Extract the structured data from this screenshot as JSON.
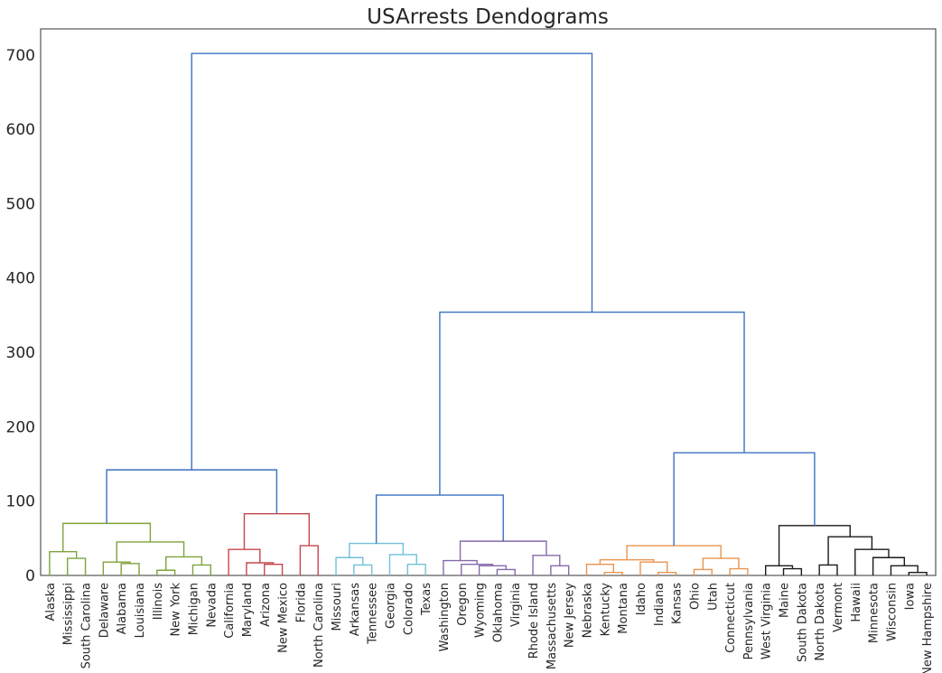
{
  "chart_data": {
    "type": "dendrogram",
    "title": "USArrests Dendograms",
    "xlabel": "",
    "ylabel": "",
    "ylim": [
      0,
      735
    ],
    "yticks": [
      0,
      100,
      200,
      300,
      400,
      500,
      600,
      700
    ],
    "grid": false,
    "leaves": [
      "Alaska",
      "Mississippi",
      "South Carolina",
      "Delaware",
      "Alabama",
      "Louisiana",
      "Illinois",
      "New York",
      "Michigan",
      "Nevada",
      "California",
      "Maryland",
      "Arizona",
      "New Mexico",
      "Florida",
      "North Carolina",
      "Missouri",
      "Arkansas",
      "Tennessee",
      "Georgia",
      "Colorado",
      "Texas",
      "Washington",
      "Oregon",
      "Wyoming",
      "Oklahoma",
      "Virginia",
      "Rhode Island",
      "Massachusetts",
      "New Jersey",
      "Nebraska",
      "Kentucky",
      "Montana",
      "Idaho",
      "Indiana",
      "Kansas",
      "Ohio",
      "Utah",
      "Connecticut",
      "Pennsylvania",
      "West Virginia",
      "Maine",
      "South Dakota",
      "North Dakota",
      "Vermont",
      "Hawaii",
      "Minnesota",
      "Wisconsin",
      "Iowa",
      "New Hampshire"
    ],
    "colors": {
      "link": "#3b72c0",
      "c1": "#7ea33a",
      "c2": "#c7464a",
      "c3": "#6fc1d9",
      "c4": "#8669ab",
      "c5": "#e8954f",
      "c6": "#1a1a1a"
    },
    "merges": [
      {
        "a": [
          "L",
          1
        ],
        "b": [
          "L",
          2
        ],
        "h": 23,
        "c": "c1"
      },
      {
        "a": [
          "L",
          0
        ],
        "b": [
          "N",
          0
        ],
        "h": 32,
        "c": "c1"
      },
      {
        "a": [
          "L",
          4
        ],
        "b": [
          "L",
          5
        ],
        "h": 16,
        "c": "c1"
      },
      {
        "a": [
          "L",
          3
        ],
        "b": [
          "N",
          2
        ],
        "h": 18,
        "c": "c1"
      },
      {
        "a": [
          "L",
          6
        ],
        "b": [
          "L",
          7
        ],
        "h": 7,
        "c": "c1"
      },
      {
        "a": [
          "L",
          8
        ],
        "b": [
          "L",
          9
        ],
        "h": 14,
        "c": "c1"
      },
      {
        "a": [
          "N",
          4
        ],
        "b": [
          "N",
          5
        ],
        "h": 25,
        "c": "c1"
      },
      {
        "a": [
          "N",
          3
        ],
        "b": [
          "N",
          6
        ],
        "h": 45,
        "c": "c1"
      },
      {
        "a": [
          "N",
          1
        ],
        "b": [
          "N",
          7
        ],
        "h": 70,
        "c": "c1"
      },
      {
        "a": [
          "L",
          12
        ],
        "b": [
          "L",
          13
        ],
        "h": 15,
        "c": "c2"
      },
      {
        "a": [
          "L",
          11
        ],
        "b": [
          "N",
          9
        ],
        "h": 17,
        "c": "c2"
      },
      {
        "a": [
          "L",
          10
        ],
        "b": [
          "N",
          10
        ],
        "h": 35,
        "c": "c2"
      },
      {
        "a": [
          "L",
          14
        ],
        "b": [
          "L",
          15
        ],
        "h": 40,
        "c": "c2"
      },
      {
        "a": [
          "N",
          11
        ],
        "b": [
          "N",
          12
        ],
        "h": 83,
        "c": "c2"
      },
      {
        "a": [
          "N",
          8
        ],
        "b": [
          "N",
          13
        ],
        "h": 142,
        "c": "link"
      },
      {
        "a": [
          "L",
          17
        ],
        "b": [
          "L",
          18
        ],
        "h": 14,
        "c": "c3"
      },
      {
        "a": [
          "L",
          16
        ],
        "b": [
          "N",
          15
        ],
        "h": 24,
        "c": "c3"
      },
      {
        "a": [
          "L",
          20
        ],
        "b": [
          "L",
          21
        ],
        "h": 15,
        "c": "c3"
      },
      {
        "a": [
          "L",
          19
        ],
        "b": [
          "N",
          17
        ],
        "h": 28,
        "c": "c3"
      },
      {
        "a": [
          "N",
          16
        ],
        "b": [
          "N",
          18
        ],
        "h": 43,
        "c": "c3"
      },
      {
        "a": [
          "L",
          25
        ],
        "b": [
          "L",
          26
        ],
        "h": 8,
        "c": "c4"
      },
      {
        "a": [
          "L",
          24
        ],
        "b": [
          "N",
          20
        ],
        "h": 13,
        "c": "c4"
      },
      {
        "a": [
          "L",
          23
        ],
        "b": [
          "N",
          21
        ],
        "h": 15,
        "c": "c4"
      },
      {
        "a": [
          "L",
          22
        ],
        "b": [
          "N",
          22
        ],
        "h": 20,
        "c": "c4"
      },
      {
        "a": [
          "L",
          28
        ],
        "b": [
          "L",
          29
        ],
        "h": 13,
        "c": "c4"
      },
      {
        "a": [
          "L",
          27
        ],
        "b": [
          "N",
          24
        ],
        "h": 27,
        "c": "c4"
      },
      {
        "a": [
          "N",
          23
        ],
        "b": [
          "N",
          25
        ],
        "h": 46,
        "c": "c4"
      },
      {
        "a": [
          "N",
          19
        ],
        "b": [
          "N",
          26
        ],
        "h": 108,
        "c": "link"
      },
      {
        "a": [
          "L",
          31
        ],
        "b": [
          "L",
          32
        ],
        "h": 4,
        "c": "c5"
      },
      {
        "a": [
          "L",
          30
        ],
        "b": [
          "N",
          28
        ],
        "h": 15,
        "c": "c5"
      },
      {
        "a": [
          "L",
          34
        ],
        "b": [
          "L",
          35
        ],
        "h": 4,
        "c": "c5"
      },
      {
        "a": [
          "L",
          33
        ],
        "b": [
          "N",
          30
        ],
        "h": 18,
        "c": "c5"
      },
      {
        "a": [
          "N",
          29
        ],
        "b": [
          "N",
          31
        ],
        "h": 21,
        "c": "c5"
      },
      {
        "a": [
          "L",
          36
        ],
        "b": [
          "L",
          37
        ],
        "h": 8,
        "c": "c5"
      },
      {
        "a": [
          "L",
          38
        ],
        "b": [
          "L",
          39
        ],
        "h": 9,
        "c": "c5"
      },
      {
        "a": [
          "N",
          33
        ],
        "b": [
          "N",
          34
        ],
        "h": 23,
        "c": "c5"
      },
      {
        "a": [
          "N",
          32
        ],
        "b": [
          "N",
          35
        ],
        "h": 40,
        "c": "c5"
      },
      {
        "a": [
          "L",
          41
        ],
        "b": [
          "L",
          42
        ],
        "h": 9,
        "c": "c6"
      },
      {
        "a": [
          "L",
          40
        ],
        "b": [
          "N",
          37
        ],
        "h": 13,
        "c": "c6"
      },
      {
        "a": [
          "L",
          43
        ],
        "b": [
          "L",
          44
        ],
        "h": 14,
        "c": "c6"
      },
      {
        "a": [
          "L",
          48
        ],
        "b": [
          "L",
          49
        ],
        "h": 4,
        "c": "c6"
      },
      {
        "a": [
          "L",
          47
        ],
        "b": [
          "N",
          40
        ],
        "h": 13,
        "c": "c6"
      },
      {
        "a": [
          "L",
          46
        ],
        "b": [
          "N",
          41
        ],
        "h": 24,
        "c": "c6"
      },
      {
        "a": [
          "L",
          45
        ],
        "b": [
          "N",
          42
        ],
        "h": 35,
        "c": "c6"
      },
      {
        "a": [
          "N",
          39
        ],
        "b": [
          "N",
          43
        ],
        "h": 52,
        "c": "c6"
      },
      {
        "a": [
          "N",
          38
        ],
        "b": [
          "N",
          44
        ],
        "h": 67,
        "c": "c6"
      },
      {
        "a": [
          "N",
          36
        ],
        "b": [
          "N",
          45
        ],
        "h": 165,
        "c": "link"
      },
      {
        "a": [
          "N",
          27
        ],
        "b": [
          "N",
          46
        ],
        "h": 354,
        "c": "link"
      },
      {
        "a": [
          "N",
          14
        ],
        "b": [
          "N",
          47
        ],
        "h": 702,
        "c": "link"
      }
    ]
  }
}
